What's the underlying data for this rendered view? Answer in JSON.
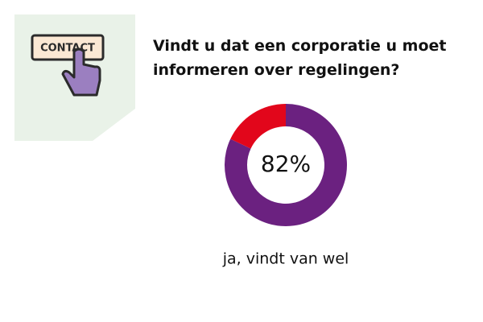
{
  "icon": {
    "label": "CONTACT"
  },
  "chart_data": {
    "type": "donut",
    "title": "Vindt u dat een corporatie u moet informeren over regelingen?",
    "categories": [
      "ja, vindt van wel",
      null
    ],
    "values": [
      82,
      18
    ],
    "value_labels": [
      "82%",
      null
    ],
    "colors": [
      "#6b2180",
      "#e2061b"
    ]
  }
}
